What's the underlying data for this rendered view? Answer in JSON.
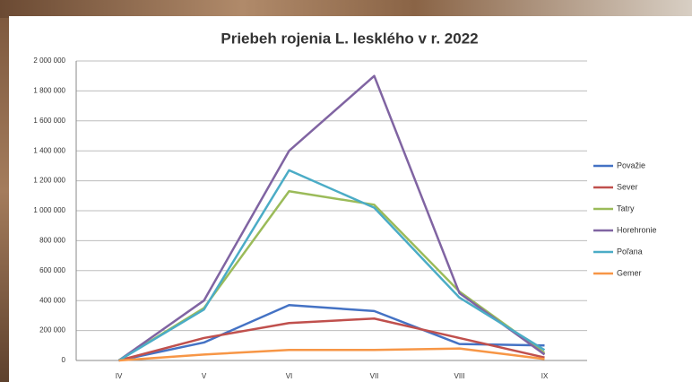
{
  "chart_data": {
    "type": "line",
    "title": "Priebeh rojenia L. lesklého v r. 2022",
    "categories": [
      "IV",
      "V",
      "VI",
      "VII",
      "VIII",
      "IX"
    ],
    "series": [
      {
        "name": "Považie",
        "color": "#4472c4",
        "values": [
          0,
          120000,
          370000,
          330000,
          110000,
          100000
        ]
      },
      {
        "name": "Sever",
        "color": "#c0504d",
        "values": [
          0,
          150000,
          250000,
          280000,
          150000,
          20000
        ]
      },
      {
        "name": "Tatry",
        "color": "#9bbb59",
        "values": [
          0,
          350000,
          1130000,
          1040000,
          460000,
          50000
        ]
      },
      {
        "name": "Horehronie",
        "color": "#8064a2",
        "values": [
          0,
          400000,
          1400000,
          1900000,
          450000,
          40000
        ]
      },
      {
        "name": "Poľana",
        "color": "#4bacc6",
        "values": [
          0,
          340000,
          1270000,
          1020000,
          420000,
          70000
        ]
      },
      {
        "name": "Gemer",
        "color": "#f79646",
        "values": [
          0,
          40000,
          70000,
          70000,
          80000,
          10000
        ]
      }
    ],
    "ylim": [
      0,
      2000000
    ],
    "yticks": [
      0,
      {
        "value": 200000,
        "label": "200 000"
      },
      {
        "value": 400000,
        "label": "400 000"
      },
      {
        "value": 600000,
        "label": "600 000"
      },
      {
        "value": 800000,
        "label": "800 000"
      },
      {
        "value": 1000000,
        "label": "1 000 000"
      },
      {
        "value": 1200000,
        "label": "1 200 000"
      },
      {
        "value": 1400000,
        "label": "1 400 000"
      },
      {
        "value": 1600000,
        "label": "1 600 000"
      },
      {
        "value": 1800000,
        "label": "1 800 000"
      },
      {
        "value": 2000000,
        "label": "2 000 000"
      }
    ],
    "grid": true,
    "legend": "right"
  }
}
